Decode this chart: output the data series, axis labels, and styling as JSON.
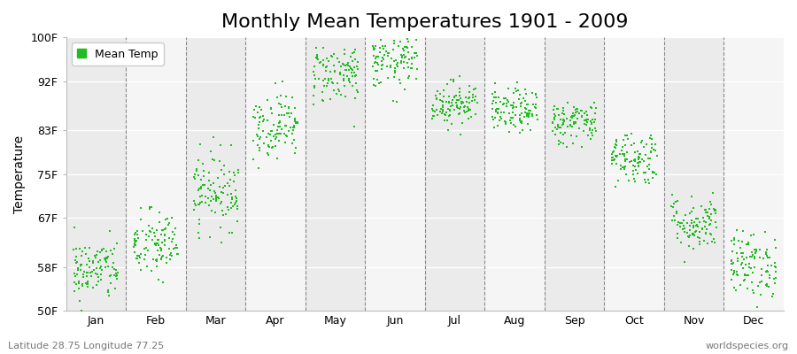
{
  "title": "Monthly Mean Temperatures 1901 - 2009",
  "ylabel": "Temperature",
  "xlabel_months": [
    "Jan",
    "Feb",
    "Mar",
    "Apr",
    "May",
    "Jun",
    "Jul",
    "Aug",
    "Sep",
    "Oct",
    "Nov",
    "Dec"
  ],
  "ytick_labels": [
    "50F",
    "58F",
    "67F",
    "75F",
    "83F",
    "92F",
    "100F"
  ],
  "ytick_values": [
    50,
    58,
    67,
    75,
    83,
    92,
    100
  ],
  "ylim": [
    50,
    100
  ],
  "dot_color": "#22bb22",
  "dot_size": 3,
  "background_color": "#ffffff",
  "plot_bg_even": "#ebebeb",
  "plot_bg_odd": "#f5f5f5",
  "grid_color": "#ffffff",
  "dashed_line_color": "#888888",
  "legend_label": "Mean Temp",
  "footer_left": "Latitude 28.75 Longitude 77.25",
  "footer_right": "worldspecies.org",
  "title_fontsize": 16,
  "label_fontsize": 10,
  "tick_fontsize": 9,
  "monthly_mean_F": [
    57.5,
    62.0,
    72.0,
    84.0,
    93.5,
    95.5,
    88.0,
    86.5,
    84.5,
    78.0,
    66.0,
    58.5
  ],
  "monthly_std_F": [
    2.8,
    3.2,
    3.5,
    3.0,
    2.8,
    2.5,
    2.0,
    2.0,
    2.0,
    2.5,
    2.5,
    3.0
  ],
  "n_years": 109,
  "random_seed": 42
}
